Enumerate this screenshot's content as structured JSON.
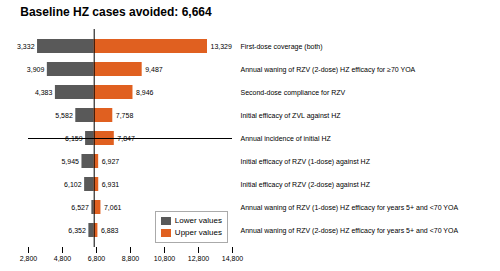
{
  "chart_data": {
    "type": "bar",
    "orientation": "horizontal",
    "title": "Baseline HZ cases avoided:  6,664",
    "baseline": 6664,
    "categories": [
      "First-dose coverage (both)",
      "Annual waning of RZV (2-dose) HZ efficacy for ≥70 YOA",
      "Second-dose compliance for RZV",
      "Initial efficacy of ZVL against HZ",
      "Annual incidence of initial HZ",
      "Initial efficacy of RZV (1-dose) against HZ",
      "Initial efficacy of RZV (2-dose) against HZ",
      "Annual waning of RZV (1-dose) HZ efficacy for years 5+ and <70 YOA",
      "Annual waning of RZV (2-dose) HZ efficacy for years 5+ and <70 YOA"
    ],
    "series": [
      {
        "name": "Lower values",
        "color": "#595959",
        "values": [
          3332,
          3909,
          4383,
          5582,
          6159,
          5945,
          6102,
          6527,
          6352
        ],
        "value_labels": [
          "3,332",
          "3,909",
          "4,383",
          "5,582",
          "6,159",
          "5,945",
          "6,102",
          "6,527",
          "6,352"
        ]
      },
      {
        "name": "Upper values",
        "color": "#E06020",
        "values": [
          13329,
          9487,
          8946,
          7758,
          7847,
          6927,
          6931,
          7061,
          6883
        ],
        "value_labels": [
          "13,329",
          "9,487",
          "8,946",
          "7,758",
          "7,847",
          "6,927",
          "6,931",
          "7,061",
          "6,883"
        ]
      }
    ],
    "xlim": [
      2800,
      14800
    ],
    "xticks": [
      {
        "value": 2800,
        "label": "2,800"
      },
      {
        "value": 4800,
        "label": "4,800"
      },
      {
        "value": 6800,
        "label": "6,800"
      },
      {
        "value": 8800,
        "label": "8,800"
      },
      {
        "value": 10800,
        "label": "10,800"
      },
      {
        "value": 12800,
        "label": "12,800"
      },
      {
        "value": 14800,
        "label": "14,800"
      }
    ],
    "data_labels": true,
    "legend": "lower right"
  }
}
